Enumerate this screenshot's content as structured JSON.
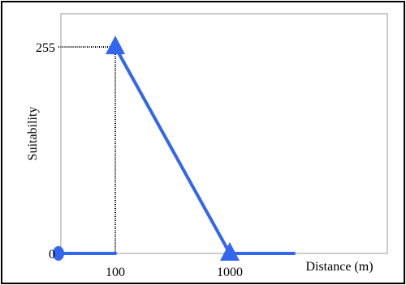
{
  "chart_data": {
    "type": "line",
    "title": "",
    "xlabel": "Distance (m)",
    "ylabel": "Suitability",
    "y_ticks": [
      {
        "value": 0,
        "label": "0"
      },
      {
        "value": 255,
        "label": "255"
      }
    ],
    "x_ticks": [
      {
        "value": 100,
        "label": "100"
      },
      {
        "value": 1000,
        "label": "1000"
      }
    ],
    "series": [
      {
        "color": "#3366ee",
        "points": [
          {
            "x": 0,
            "y": 0
          },
          {
            "x": 100,
            "y": 0
          },
          {
            "x": 100,
            "y": 255
          },
          {
            "x": 1000,
            "y": 0
          },
          {
            "x": 1400,
            "y": 0
          }
        ]
      }
    ],
    "markers": [
      {
        "shape": "circle",
        "x": 0,
        "y": 0
      },
      {
        "shape": "triangle",
        "x": 100,
        "y": 255
      },
      {
        "shape": "triangle",
        "x": 1000,
        "y": 0
      }
    ],
    "guides": [
      {
        "orientation": "horizontal",
        "x": 0,
        "y": 255,
        "to_x": 100
      },
      {
        "orientation": "vertical",
        "x": 100,
        "y": 0,
        "to_y": 255
      }
    ],
    "xlim": [
      0,
      1400
    ],
    "ylim": [
      0,
      255
    ],
    "grid": false,
    "x_scale": "piecewise"
  },
  "colors": {
    "series": "#3366ee",
    "guide": "#000000",
    "plot_border": "#999999",
    "frame": "#000000"
  }
}
